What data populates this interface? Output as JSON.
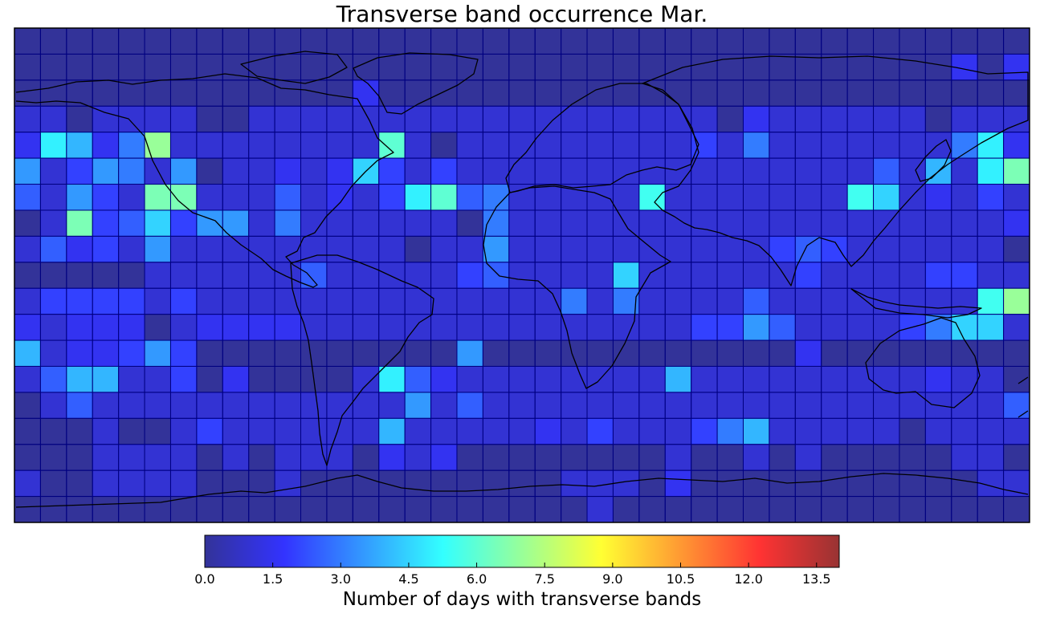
{
  "chart_data": {
    "type": "heatmap",
    "title": "Transverse band occurrence Mar.",
    "colorbar": {
      "label": "Number of days with transverse bands",
      "colormap": "jet",
      "range": [
        0,
        14
      ],
      "ticks": [
        "0.0",
        "1.5",
        "3.0",
        "4.5",
        "6.0",
        "7.5",
        "9.0",
        "10.5",
        "12.0",
        "13.5"
      ]
    },
    "grid": {
      "rows": 19,
      "cols": 39,
      "lon_range": [
        -180,
        180
      ],
      "lat_range": [
        -90,
        90
      ]
    },
    "values": [
      [
        0,
        0,
        0,
        0,
        0,
        0,
        0,
        0,
        0,
        0,
        0,
        0,
        0,
        0,
        0,
        0,
        0,
        0,
        0,
        0,
        0,
        0,
        0,
        0,
        0,
        0,
        0,
        0,
        0,
        0,
        0,
        0,
        0,
        0,
        0,
        0,
        0,
        0,
        0
      ],
      [
        0,
        0,
        0,
        0,
        0,
        0,
        0,
        0,
        0,
        0,
        0,
        0,
        0,
        0,
        0,
        0,
        0,
        0,
        0,
        0,
        0,
        0,
        0,
        0,
        0,
        0,
        0,
        0,
        0,
        0,
        0,
        0,
        0,
        0,
        0,
        0,
        1.5,
        0,
        1.5
      ],
      [
        0,
        0,
        0,
        0,
        0,
        0,
        0,
        0,
        0,
        0,
        0,
        0,
        0,
        1.5,
        0,
        0,
        0,
        0,
        0,
        0,
        0,
        0,
        0,
        0,
        0,
        0,
        0,
        0,
        0,
        0,
        0,
        0,
        0,
        0,
        0,
        0,
        0,
        0,
        0
      ],
      [
        1,
        1,
        0,
        1,
        1,
        1,
        1,
        0,
        0,
        1,
        1,
        1,
        1,
        1,
        1,
        1,
        1,
        1,
        1,
        1,
        1,
        1,
        1,
        1,
        1,
        1,
        1,
        0,
        1.5,
        1,
        1,
        1,
        1,
        1,
        1,
        0,
        1,
        1,
        1
      ],
      [
        1.5,
        5,
        4,
        1.5,
        3,
        7,
        1,
        1,
        1,
        1,
        1,
        1,
        1,
        1,
        6,
        1,
        0,
        1,
        1,
        1,
        1,
        1,
        1,
        1,
        1,
        1,
        2,
        1,
        3,
        1,
        1,
        1,
        1,
        1,
        1,
        1,
        3,
        5,
        1.5
      ],
      [
        3.5,
        1,
        2,
        3.5,
        3,
        1,
        3.5,
        0,
        1,
        1,
        1.5,
        1,
        1.5,
        4.5,
        2,
        1,
        2,
        1,
        1,
        1,
        1,
        1,
        1,
        1,
        1,
        1,
        1,
        1,
        1,
        1,
        1,
        1,
        1,
        2.5,
        1,
        4,
        1,
        5,
        6.5
      ],
      [
        2.5,
        1,
        3.5,
        2,
        1,
        6.5,
        6.5,
        1,
        1,
        1,
        2.5,
        1,
        1.5,
        1,
        2,
        5,
        6,
        2.5,
        3,
        1,
        1,
        1,
        1,
        1,
        5.5,
        1,
        1,
        1,
        1,
        1,
        1,
        1,
        5.5,
        4.5,
        1,
        1.5,
        1,
        2,
        1
      ],
      [
        0,
        1,
        6.5,
        2,
        2.5,
        4.5,
        2,
        3.5,
        3.5,
        1,
        3,
        1,
        1,
        1,
        1,
        1,
        1,
        0,
        3,
        1,
        1,
        1,
        1,
        1,
        1,
        1,
        1,
        1,
        1,
        1,
        1,
        1,
        1,
        1,
        1,
        1,
        1,
        1,
        1.5
      ],
      [
        1,
        2.5,
        1.5,
        2,
        1,
        3.5,
        1,
        1,
        1,
        1,
        1,
        1,
        1,
        1,
        1,
        0,
        1,
        1,
        3.5,
        1,
        1,
        1,
        1,
        1,
        1,
        1,
        1,
        1,
        1,
        2,
        2.5,
        2,
        1,
        1,
        1,
        1,
        1,
        1,
        0
      ],
      [
        0,
        0,
        0,
        0,
        0,
        1,
        1,
        1,
        1,
        1,
        1,
        2.5,
        1,
        1,
        1,
        1,
        1,
        2,
        2.5,
        1,
        1,
        1,
        1,
        4.5,
        1,
        1,
        1,
        1,
        1,
        1,
        2,
        1,
        1,
        1,
        1,
        2,
        2,
        1,
        1
      ],
      [
        1,
        2,
        2,
        2,
        2,
        1,
        2,
        1,
        1,
        1,
        1,
        1,
        1,
        1,
        1,
        1,
        1,
        1,
        1,
        1,
        1,
        3,
        1,
        3,
        1,
        1,
        1,
        1,
        2.5,
        1,
        1,
        1,
        1,
        1,
        1,
        1,
        1,
        5.5,
        7
      ],
      [
        1.5,
        1,
        1.5,
        1.5,
        1.5,
        0,
        1,
        1.5,
        1.5,
        1.5,
        1.5,
        1,
        1,
        1,
        1,
        1,
        1,
        1,
        1,
        1,
        1,
        1,
        1,
        1,
        1,
        1,
        2,
        2,
        3.5,
        2.5,
        1,
        1,
        1,
        1,
        2,
        3,
        4.5,
        4.5,
        1
      ],
      [
        4,
        1,
        1.5,
        1.5,
        2,
        3.5,
        2,
        0,
        0,
        0,
        0,
        0,
        0,
        0,
        0,
        0,
        0,
        3.5,
        0,
        0,
        0,
        0,
        0,
        0,
        0,
        0,
        0,
        0,
        0,
        0,
        1.5,
        0,
        0,
        0,
        0,
        0,
        0,
        0,
        0
      ],
      [
        1,
        2.5,
        4,
        4,
        1,
        1,
        2,
        0,
        1.5,
        0,
        0,
        0,
        0,
        1,
        5,
        2.5,
        1.5,
        1,
        1,
        1,
        1,
        1,
        1,
        1,
        1,
        4,
        1,
        1,
        1,
        1,
        1,
        1,
        1,
        1,
        1,
        1.5,
        1,
        1,
        0
      ],
      [
        0,
        1,
        2.5,
        1,
        1,
        1,
        1,
        1,
        1,
        1,
        1,
        1,
        1,
        1,
        1,
        3.5,
        1,
        2.5,
        1,
        1,
        1,
        1,
        1,
        1,
        1,
        1,
        1,
        1,
        1,
        1,
        1,
        1,
        1,
        1,
        1,
        1,
        1,
        1,
        2.5
      ],
      [
        0,
        0,
        0,
        1,
        0,
        0,
        1,
        2,
        1,
        1,
        1,
        1,
        1,
        1,
        4,
        1,
        1,
        1,
        1,
        1,
        1.5,
        1,
        2,
        1,
        1,
        1,
        2,
        3,
        4,
        1,
        1,
        1,
        1,
        1,
        0,
        1,
        1,
        1,
        1
      ],
      [
        0,
        0,
        0,
        1,
        1,
        1,
        1,
        0,
        1,
        0,
        1,
        1,
        1,
        0,
        1.5,
        1,
        1.5,
        0,
        0,
        0,
        0,
        0,
        0,
        0,
        0,
        1,
        0,
        0,
        1,
        0,
        1,
        0,
        0,
        0,
        0,
        0,
        1,
        1,
        0
      ],
      [
        1,
        0,
        0,
        1,
        1,
        1,
        1,
        0,
        0,
        0,
        1,
        0,
        0,
        0,
        0,
        0,
        0,
        0,
        0,
        0,
        0,
        1,
        1,
        1,
        0,
        1.5,
        0,
        0,
        0,
        0,
        0,
        0,
        0,
        0,
        0,
        0,
        0,
        1,
        1
      ],
      [
        0,
        0,
        0,
        0,
        0,
        0,
        0,
        0,
        0,
        0,
        0,
        0,
        0,
        0,
        0,
        0,
        0,
        0,
        0,
        0,
        0,
        0,
        1,
        0,
        0,
        0,
        0,
        0,
        0,
        0,
        0,
        0,
        0,
        0,
        0,
        0,
        0,
        0,
        0
      ]
    ]
  }
}
